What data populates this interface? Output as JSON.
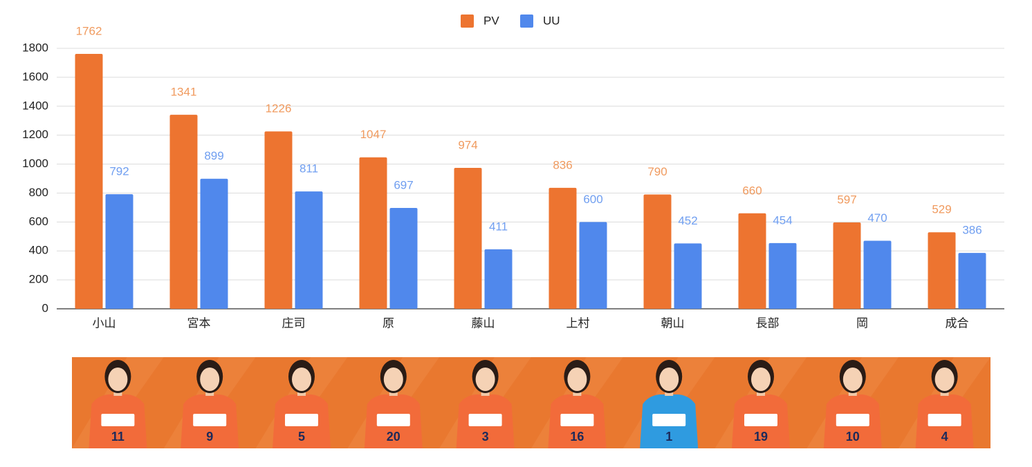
{
  "chart_data": {
    "type": "bar",
    "categories": [
      "小山",
      "宮本",
      "庄司",
      "原",
      "藤山",
      "上村",
      "朝山",
      "長部",
      "岡",
      "成合"
    ],
    "series": [
      {
        "name": "PV",
        "color": "#ed7430",
        "label_color": "#f09a5e",
        "values": [
          1762,
          1341,
          1226,
          1047,
          974,
          836,
          790,
          660,
          597,
          529
        ]
      },
      {
        "name": "UU",
        "color": "#5088ec",
        "label_color": "#6f9ef0",
        "values": [
          792,
          899,
          811,
          697,
          411,
          600,
          452,
          454,
          470,
          386
        ]
      }
    ],
    "ylim": [
      0,
      1800
    ],
    "yticks": [
      0,
      200,
      400,
      600,
      800,
      1000,
      1200,
      1400,
      1600,
      1800
    ],
    "grid": true,
    "legend": "top"
  },
  "photo_strip": {
    "background": "#e9782f",
    "numbers": [
      "11",
      "9",
      "5",
      "20",
      "3",
      "16",
      "1",
      "19",
      "10",
      "4"
    ],
    "jersey_colors": [
      "#f26b3a",
      "#f26b3a",
      "#f26b3a",
      "#f26b3a",
      "#f26b3a",
      "#f26b3a",
      "#2f9be0",
      "#f26b3a",
      "#f26b3a",
      "#f26b3a"
    ]
  }
}
